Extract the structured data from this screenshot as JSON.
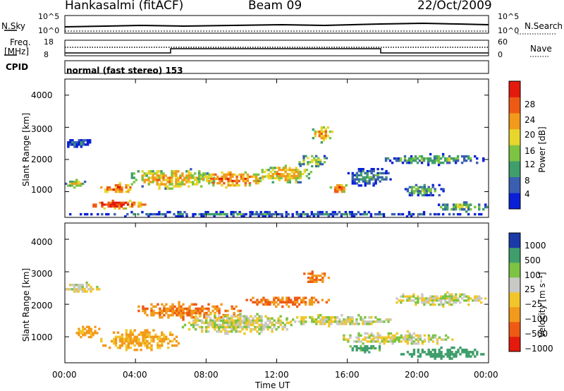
{
  "header": {
    "station": "Hankasalmi (fitACF)",
    "beam": "Beam 09",
    "date": "22/Oct/2009"
  },
  "strips": {
    "nsky_label": "N.Sky",
    "nsky_ticks": [
      "10^5",
      "10^0"
    ],
    "nsearch_label": "N.Search",
    "nsearch_ticks": [
      "10^5",
      "10^0"
    ],
    "freq_label_1": "Freq.",
    "freq_label_2": "[MHz]",
    "freq_ticks": [
      "18",
      "8"
    ],
    "nave_label": "Nave",
    "nave_ticks": [
      "60",
      "0"
    ],
    "cpid_label": "CPID",
    "cpid_text": "normal (fast stereo) 153"
  },
  "axes": {
    "ylabel": "Slant Range [km]",
    "y_ticks": [
      "1000",
      "2000",
      "3000",
      "4000"
    ],
    "xlabel": "Time UT",
    "x_ticks": [
      "00:00",
      "04:00",
      "08:00",
      "12:00",
      "16:00",
      "20:00",
      "00:00"
    ]
  },
  "colorbars": {
    "power_label": "Power [dB]",
    "power_ticks": [
      "4",
      "8",
      "12",
      "16",
      "20",
      "24",
      "28"
    ],
    "velocity_label": "Velocity [m s⁻¹]",
    "velocity_ticks": [
      "1000",
      "500",
      "100",
      "25",
      "−25",
      "−100",
      "−500",
      "−1000"
    ]
  },
  "chart_data": [
    {
      "type": "heatmap",
      "title": "Power",
      "xlabel": "Time UT",
      "ylabel": "Slant Range [km]",
      "xlim": [
        0,
        24
      ],
      "ylim": [
        200,
        4500
      ],
      "colorbar_label": "Power [dB]",
      "colorbar_range": [
        0,
        30
      ],
      "colors": [
        "#0a1fd8",
        "#3a5fb0",
        "#3f9e6c",
        "#7cc442",
        "#e8d62c",
        "#f29a1c",
        "#ee5a14",
        "#e31a0c"
      ],
      "regions": [
        {
          "t0": 0.0,
          "t1": 1.6,
          "r0": 2300,
          "r1": 2700,
          "v": 6
        },
        {
          "t0": 0.0,
          "t1": 1.2,
          "r0": 1100,
          "r1": 1400,
          "v": 18
        },
        {
          "t0": 1.2,
          "t1": 4.6,
          "r0": 450,
          "r1": 750,
          "v": 28
        },
        {
          "t0": 2.0,
          "t1": 4.0,
          "r0": 900,
          "r1": 1300,
          "v": 24
        },
        {
          "t0": 3.5,
          "t1": 8.5,
          "r0": 1000,
          "r1": 1800,
          "v": 20
        },
        {
          "t0": 7.5,
          "t1": 11.5,
          "r0": 1100,
          "r1": 1700,
          "v": 24
        },
        {
          "t0": 11.0,
          "t1": 14.0,
          "r0": 1200,
          "r1": 1900,
          "v": 20
        },
        {
          "t0": 13.0,
          "t1": 15.0,
          "r0": 1700,
          "r1": 2200,
          "v": 14
        },
        {
          "t0": 14.0,
          "t1": 15.2,
          "r0": 2500,
          "r1": 3100,
          "v": 22
        },
        {
          "t0": 15.0,
          "t1": 16.0,
          "r0": 900,
          "r1": 1300,
          "v": 24
        },
        {
          "t0": 16.0,
          "t1": 18.5,
          "r0": 1100,
          "r1": 1800,
          "v": 10
        },
        {
          "t0": 18.0,
          "t1": 24.0,
          "r0": 1800,
          "r1": 2200,
          "v": 12
        },
        {
          "t0": 19.0,
          "t1": 21.5,
          "r0": 800,
          "r1": 1300,
          "v": 12
        },
        {
          "t0": 21.0,
          "t1": 24.0,
          "r0": 350,
          "r1": 700,
          "v": 14
        },
        {
          "t0": 0.0,
          "t1": 24.0,
          "r0": 200,
          "r1": 400,
          "v": 8
        }
      ]
    },
    {
      "type": "heatmap",
      "title": "Velocity",
      "xlabel": "Time UT",
      "ylabel": "Slant Range [km]",
      "xlim": [
        0,
        24
      ],
      "ylim": [
        200,
        4500
      ],
      "colorbar_label": "Velocity [m s⁻¹]",
      "colorbar_range": [
        -1000,
        1000
      ],
      "regions": [
        {
          "t0": 0.0,
          "t1": 2.0,
          "r0": 2300,
          "r1": 2700,
          "v": 0
        },
        {
          "t0": 0.5,
          "t1": 2.0,
          "r0": 900,
          "r1": 1400,
          "v": -150
        },
        {
          "t0": 2.0,
          "t1": 6.5,
          "r0": 500,
          "r1": 1300,
          "v": -120
        },
        {
          "t0": 4.0,
          "t1": 10.0,
          "r0": 1500,
          "r1": 2100,
          "v": -300
        },
        {
          "t0": 6.5,
          "t1": 13.0,
          "r0": 1000,
          "r1": 1800,
          "v": 0
        },
        {
          "t0": 10.0,
          "t1": 15.0,
          "r0": 1900,
          "r1": 2300,
          "v": -300
        },
        {
          "t0": 13.5,
          "t1": 15.0,
          "r0": 2600,
          "r1": 3100,
          "v": -300
        },
        {
          "t0": 12.5,
          "t1": 18.5,
          "r0": 1300,
          "r1": 1700,
          "v": 0
        },
        {
          "t0": 18.5,
          "t1": 24.0,
          "r0": 1900,
          "r1": 2400,
          "v": 0
        },
        {
          "t0": 15.5,
          "t1": 22.0,
          "r0": 700,
          "r1": 1200,
          "v": 0
        },
        {
          "t0": 19.0,
          "t1": 24.0,
          "r0": 300,
          "r1": 700,
          "v": 200
        },
        {
          "t0": 16.0,
          "t1": 18.0,
          "r0": 500,
          "r1": 800,
          "v": 150
        }
      ]
    }
  ]
}
